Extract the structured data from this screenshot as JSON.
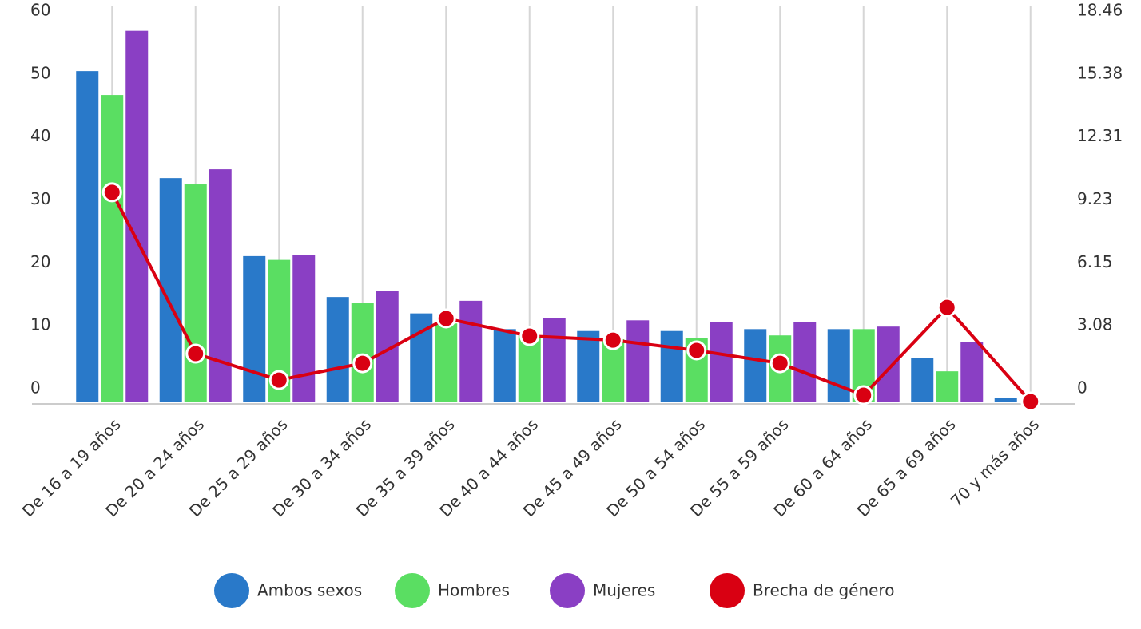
{
  "chart_data": {
    "type": "bar",
    "categories": [
      "De 16 a 19 años",
      "De 20 a 24 años",
      "De 25 a 29 años",
      "De 30 a 34 años",
      "De 35 a 39 años",
      "De 40 a 44 años",
      "De 45 a 49 años",
      "De 50 a 54 años",
      "De 55 a 59 años",
      "De 60 a 64 años",
      "De 65 a 69 años",
      "70 y más años"
    ],
    "series": [
      {
        "name": "Ambos sexos",
        "color": "#2979c9",
        "values": [
          52.5,
          35.5,
          23.1,
          16.6,
          14.0,
          11.5,
          11.2,
          11.2,
          11.5,
          11.5,
          6.9,
          0.6
        ]
      },
      {
        "name": "Hombres",
        "color": "#5ade62",
        "values": [
          48.7,
          34.5,
          22.5,
          15.6,
          12.4,
          10.5,
          9.9,
          10.1,
          10.5,
          11.5,
          4.8,
          0
        ]
      },
      {
        "name": "Mujeres",
        "color": "#8a3fc4",
        "values": [
          58.9,
          36.9,
          23.3,
          17.6,
          16.0,
          13.2,
          12.9,
          12.6,
          12.6,
          11.9,
          9.5,
          0
        ]
      },
      {
        "name": "Brecha de género",
        "color": "#d90012",
        "type": "line",
        "axis": "y2",
        "values": [
          10.23,
          2.34,
          1.05,
          1.87,
          4.06,
          3.2,
          3.0,
          2.5,
          1.87,
          0.31,
          4.6,
          0
        ]
      }
    ],
    "ylim": [
      0,
      60
    ],
    "yticks": [
      0,
      10,
      20,
      30,
      40,
      50,
      60
    ],
    "y2lim": [
      0,
      18.46
    ],
    "y2ticks": [
      0,
      3.08,
      6.15,
      9.23,
      12.31,
      15.38,
      18.46
    ],
    "grid": true,
    "legend": "bottom"
  }
}
